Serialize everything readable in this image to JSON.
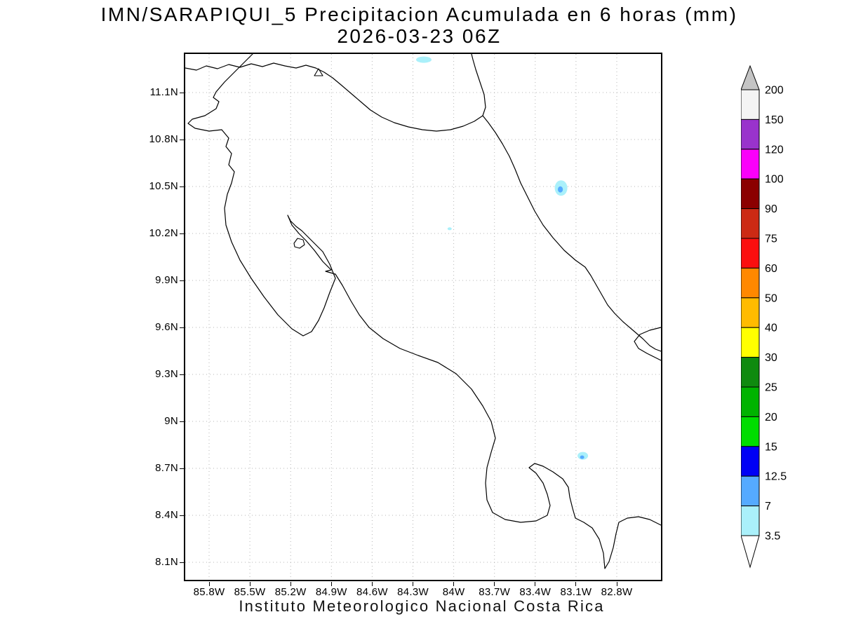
{
  "title": {
    "line1": "IMN/SARAPIQUI_5 Precipitacion Acumulada en 6 horas (mm)",
    "line2": "2026-03-23 06Z"
  },
  "footer": "Instituto Meteorologico Nacional Costa Rica",
  "axes": {
    "lat_ticks": [
      "11.1N",
      "10.8N",
      "10.5N",
      "10.2N",
      "9.9N",
      "9.6N",
      "9.3N",
      "9N",
      "8.7N",
      "8.4N",
      "8.1N"
    ],
    "lon_ticks": [
      "85.8W",
      "85.5W",
      "85.2W",
      "84.9W",
      "84.6W",
      "84.3W",
      "84W",
      "83.7W",
      "83.4W",
      "83.1W",
      "82.8W"
    ]
  },
  "colorbar": {
    "labels_top_to_bottom": [
      "200",
      "150",
      "120",
      "100",
      "90",
      "75",
      "60",
      "50",
      "40",
      "30",
      "25",
      "20",
      "15",
      "12.5",
      "7",
      "3.5"
    ],
    "segment_colors_top_to_bottom": [
      "#f4f4f4",
      "#9933cc",
      "#fa00fa",
      "#8b0000",
      "#cc2a14",
      "#fb0f0f",
      "#ff8800",
      "#ffbb00",
      "#ffff00",
      "#0f8a0f",
      "#00b300",
      "#00dd00",
      "#0000f5",
      "#55aaff",
      "#aaf0fa"
    ],
    "arrow_top_color": "#c4c4c4",
    "arrow_bottom_color": "#ffffff"
  },
  "chart_data": {
    "type": "heatmap",
    "title": "IMN/SARAPIQUI_5 Precipitacion Acumulada en 6 horas (mm)",
    "valid_time": "2026-03-23 06Z",
    "units": "mm",
    "region": "Costa Rica",
    "lon_axis_w_range": [
      85.8,
      82.8
    ],
    "lat_axis_n_range": [
      8.1,
      11.1
    ],
    "levels_mm": [
      3.5,
      7,
      12.5,
      15,
      20,
      25,
      30,
      40,
      50,
      60,
      75,
      90,
      100,
      120,
      150,
      200
    ],
    "precip_areas": [
      {
        "lon_w": 83.21,
        "lat_n": 10.49,
        "peak_mm_range": "7-12.5",
        "approx_size_px": [
          18,
          22
        ]
      },
      {
        "lon_w": 83.05,
        "lat_n": 8.78,
        "peak_mm_range": "7-12.5",
        "approx_size_px": [
          15,
          11
        ]
      },
      {
        "lon_w": 84.22,
        "lat_n": 11.31,
        "peak_mm_range": "3.5-7",
        "approx_size_px": [
          22,
          9
        ]
      },
      {
        "lon_w": 84.03,
        "lat_n": 10.23,
        "peak_mm_range": "3.5-7",
        "approx_size_px": [
          6,
          4
        ]
      }
    ]
  }
}
